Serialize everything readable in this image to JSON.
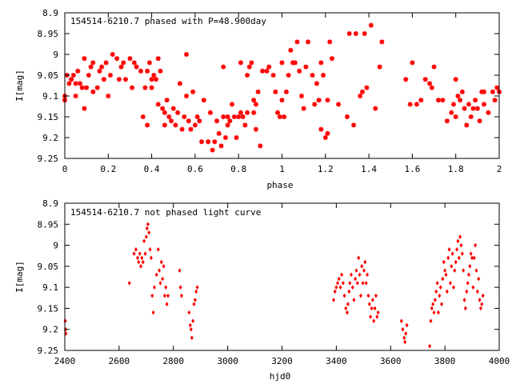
{
  "chart_data": [
    {
      "type": "scatter",
      "title": "154514-6210.7 phased with P=48.900day",
      "xlabel": "phase",
      "ylabel": "I[mag]",
      "xlim": [
        0,
        2
      ],
      "ylim": [
        9.25,
        8.9
      ],
      "y_inverted": true,
      "x_ticks": [
        "0",
        "0.2",
        "0.4",
        "0.6",
        "0.8",
        "1",
        "1.2",
        "1.4",
        "1.6",
        "1.8",
        "2"
      ],
      "x_tick_values": [
        0,
        0.2,
        0.4,
        0.6,
        0.8,
        1.0,
        1.2,
        1.4,
        1.6,
        1.8,
        2.0
      ],
      "y_ticks": [
        "8.9",
        "8.95",
        "9",
        "9.05",
        "9.1",
        "9.15",
        "9.2",
        "9.25"
      ],
      "y_tick_values": [
        8.9,
        8.95,
        9.0,
        9.05,
        9.1,
        9.15,
        9.2,
        9.25
      ],
      "marker": "star",
      "color": "#ff0000",
      "grid": false,
      "points": [
        [
          0.0,
          9.1
        ],
        [
          0.0,
          9.11
        ],
        [
          0.01,
          9.05
        ],
        [
          0.02,
          9.07
        ],
        [
          0.03,
          9.06
        ],
        [
          0.04,
          9.05
        ],
        [
          0.05,
          9.07
        ],
        [
          0.05,
          9.1
        ],
        [
          0.06,
          9.04
        ],
        [
          0.07,
          9.07
        ],
        [
          0.08,
          9.08
        ],
        [
          0.09,
          9.13
        ],
        [
          0.09,
          9.01
        ],
        [
          0.1,
          9.08
        ],
        [
          0.11,
          9.05
        ],
        [
          0.12,
          9.03
        ],
        [
          0.13,
          9.02
        ],
        [
          0.13,
          9.09
        ],
        [
          0.15,
          9.08
        ],
        [
          0.16,
          9.04
        ],
        [
          0.17,
          9.03
        ],
        [
          0.18,
          9.06
        ],
        [
          0.19,
          9.02
        ],
        [
          0.2,
          9.1
        ],
        [
          0.21,
          9.05
        ],
        [
          0.22,
          9.0
        ],
        [
          0.24,
          9.01
        ],
        [
          0.25,
          9.06
        ],
        [
          0.26,
          9.03
        ],
        [
          0.27,
          9.02
        ],
        [
          0.28,
          9.06
        ],
        [
          0.3,
          9.01
        ],
        [
          0.31,
          9.08
        ],
        [
          0.32,
          9.02
        ],
        [
          0.33,
          9.03
        ],
        [
          0.35,
          9.04
        ],
        [
          0.36,
          9.15
        ],
        [
          0.37,
          9.08
        ],
        [
          0.38,
          9.04
        ],
        [
          0.38,
          9.17
        ],
        [
          0.39,
          9.02
        ],
        [
          0.4,
          9.06
        ],
        [
          0.4,
          9.08
        ],
        [
          0.41,
          9.05
        ],
        [
          0.42,
          9.06
        ],
        [
          0.43,
          9.12
        ],
        [
          0.43,
          9.01
        ],
        [
          0.44,
          9.04
        ],
        [
          0.45,
          9.13
        ],
        [
          0.46,
          9.14
        ],
        [
          0.46,
          9.17
        ],
        [
          0.47,
          9.11
        ],
        [
          0.48,
          9.15
        ],
        [
          0.49,
          9.16
        ],
        [
          0.5,
          9.13
        ],
        [
          0.51,
          9.17
        ],
        [
          0.52,
          9.14
        ],
        [
          0.53,
          9.07
        ],
        [
          0.54,
          9.18
        ],
        [
          0.55,
          9.15
        ],
        [
          0.56,
          9.1
        ],
        [
          0.56,
          9.0
        ],
        [
          0.57,
          9.16
        ],
        [
          0.58,
          9.18
        ],
        [
          0.59,
          9.09
        ],
        [
          0.6,
          9.17
        ],
        [
          0.61,
          9.15
        ],
        [
          0.62,
          9.16
        ],
        [
          0.63,
          9.21
        ],
        [
          0.64,
          9.11
        ],
        [
          0.66,
          9.21
        ],
        [
          0.67,
          9.14
        ],
        [
          0.68,
          9.23
        ],
        [
          0.69,
          9.21
        ],
        [
          0.7,
          9.16
        ],
        [
          0.71,
          9.19
        ],
        [
          0.72,
          9.22
        ],
        [
          0.73,
          9.03
        ],
        [
          0.73,
          9.15
        ],
        [
          0.74,
          9.2
        ],
        [
          0.75,
          9.17
        ],
        [
          0.75,
          9.15
        ],
        [
          0.76,
          9.16
        ],
        [
          0.77,
          9.12
        ],
        [
          0.78,
          9.15
        ],
        [
          0.79,
          9.2
        ],
        [
          0.8,
          9.15
        ],
        [
          0.81,
          9.14
        ],
        [
          0.81,
          9.02
        ],
        [
          0.82,
          9.15
        ],
        [
          0.83,
          9.17
        ],
        [
          0.84,
          9.14
        ],
        [
          0.84,
          9.05
        ],
        [
          0.85,
          9.03
        ],
        [
          0.86,
          9.02
        ],
        [
          0.87,
          9.14
        ],
        [
          0.87,
          9.11
        ],
        [
          0.88,
          9.12
        ],
        [
          0.88,
          9.18
        ],
        [
          0.89,
          9.09
        ],
        [
          0.9,
          9.22
        ],
        [
          0.91,
          9.04
        ],
        [
          0.93,
          9.04
        ],
        [
          0.94,
          9.03
        ],
        [
          0.96,
          9.05
        ],
        [
          0.97,
          9.09
        ],
        [
          0.98,
          9.14
        ],
        [
          0.99,
          9.15
        ],
        [
          1.0,
          9.02
        ],
        [
          1.0,
          9.11
        ],
        [
          1.01,
          9.15
        ],
        [
          1.02,
          9.09
        ],
        [
          1.03,
          9.05
        ],
        [
          1.04,
          8.99
        ],
        [
          1.05,
          9.02
        ],
        [
          1.06,
          9.02
        ],
        [
          1.07,
          8.97
        ],
        [
          1.08,
          9.04
        ],
        [
          1.09,
          9.1
        ],
        [
          1.1,
          9.13
        ],
        [
          1.11,
          9.03
        ],
        [
          1.12,
          8.97
        ],
        [
          1.14,
          9.05
        ],
        [
          1.15,
          9.12
        ],
        [
          1.16,
          9.07
        ],
        [
          1.17,
          9.11
        ],
        [
          1.18,
          9.02
        ],
        [
          1.18,
          9.18
        ],
        [
          1.19,
          9.05
        ],
        [
          1.2,
          9.2
        ],
        [
          1.21,
          9.19
        ],
        [
          1.21,
          9.11
        ],
        [
          1.22,
          8.97
        ],
        [
          1.23,
          9.01
        ],
        [
          1.26,
          9.12
        ],
        [
          1.3,
          9.15
        ],
        [
          1.31,
          8.95
        ],
        [
          1.33,
          9.17
        ],
        [
          1.34,
          8.95
        ],
        [
          1.36,
          9.1
        ],
        [
          1.37,
          9.09
        ],
        [
          1.38,
          8.95
        ],
        [
          1.39,
          9.08
        ],
        [
          1.41,
          8.93
        ],
        [
          1.43,
          9.13
        ],
        [
          1.45,
          9.03
        ],
        [
          1.46,
          8.97
        ],
        [
          1.57,
          9.06
        ],
        [
          1.59,
          9.12
        ],
        [
          1.6,
          9.02
        ],
        [
          1.62,
          9.12
        ],
        [
          1.64,
          9.11
        ],
        [
          1.66,
          9.06
        ],
        [
          1.68,
          9.07
        ],
        [
          1.69,
          9.08
        ],
        [
          1.7,
          9.03
        ],
        [
          1.72,
          9.11
        ],
        [
          1.74,
          9.11
        ],
        [
          1.76,
          9.16
        ],
        [
          1.78,
          9.14
        ],
        [
          1.79,
          9.12
        ],
        [
          1.8,
          9.06
        ],
        [
          1.8,
          9.15
        ],
        [
          1.81,
          9.1
        ],
        [
          1.82,
          9.11
        ],
        [
          1.83,
          9.09
        ],
        [
          1.84,
          9.13
        ],
        [
          1.85,
          9.17
        ],
        [
          1.86,
          9.12
        ],
        [
          1.87,
          9.15
        ],
        [
          1.88,
          9.13
        ],
        [
          1.89,
          9.11
        ],
        [
          1.9,
          9.13
        ],
        [
          1.91,
          9.16
        ],
        [
          1.92,
          9.09
        ],
        [
          1.93,
          9.12
        ],
        [
          1.93,
          9.09
        ],
        [
          1.95,
          9.14
        ],
        [
          1.97,
          9.09
        ],
        [
          1.98,
          9.11
        ],
        [
          1.99,
          9.08
        ],
        [
          2.0,
          9.09
        ]
      ]
    },
    {
      "type": "scatter",
      "title": "154514-6210.7 not phased light curve",
      "xlabel": "hjd0",
      "ylabel": "I[mag]",
      "xlim": [
        2400,
        4000
      ],
      "ylim": [
        9.25,
        8.9
      ],
      "y_inverted": true,
      "x_ticks": [
        "2400",
        "2600",
        "2800",
        "3000",
        "3200",
        "3400",
        "3600",
        "3800",
        "4000"
      ],
      "x_tick_values": [
        2400,
        2600,
        2800,
        3000,
        3200,
        3400,
        3600,
        3800,
        4000
      ],
      "y_ticks": [
        "8.9",
        "8.95",
        "9",
        "9.05",
        "9.1",
        "9.15",
        "9.2",
        "9.25"
      ],
      "y_tick_values": [
        8.9,
        8.95,
        9.0,
        9.05,
        9.1,
        9.15,
        9.2,
        9.25
      ],
      "marker": "diamond",
      "color": "#ff0000",
      "grid": false,
      "points": [
        [
          2402,
          9.18
        ],
        [
          2403,
          9.2
        ],
        [
          2404,
          9.21
        ],
        [
          2638,
          9.09
        ],
        [
          2655,
          9.02
        ],
        [
          2662,
          9.01
        ],
        [
          2668,
          9.03
        ],
        [
          2672,
          9.04
        ],
        [
          2676,
          9.02
        ],
        [
          2680,
          9.05
        ],
        [
          2684,
          9.03
        ],
        [
          2688,
          9.04
        ],
        [
          2692,
          8.99
        ],
        [
          2696,
          9.02
        ],
        [
          2700,
          8.98
        ],
        [
          2703,
          8.96
        ],
        [
          2706,
          8.95
        ],
        [
          2710,
          8.97
        ],
        [
          2714,
          9.01
        ],
        [
          2718,
          9.03
        ],
        [
          2722,
          9.12
        ],
        [
          2726,
          9.16
        ],
        [
          2730,
          9.1
        ],
        [
          2738,
          9.07
        ],
        [
          2744,
          9.01
        ],
        [
          2748,
          9.06
        ],
        [
          2752,
          9.09
        ],
        [
          2756,
          9.04
        ],
        [
          2760,
          9.08
        ],
        [
          2764,
          9.05
        ],
        [
          2768,
          9.12
        ],
        [
          2772,
          9.1
        ],
        [
          2776,
          9.14
        ],
        [
          2780,
          9.12
        ],
        [
          2823,
          9.06
        ],
        [
          2826,
          9.1
        ],
        [
          2830,
          9.12
        ],
        [
          2858,
          9.16
        ],
        [
          2862,
          9.19
        ],
        [
          2865,
          9.2
        ],
        [
          2868,
          9.22
        ],
        [
          2872,
          9.18
        ],
        [
          2876,
          9.14
        ],
        [
          2880,
          9.13
        ],
        [
          2884,
          9.11
        ],
        [
          2888,
          9.1
        ],
        [
          3390,
          9.13
        ],
        [
          3395,
          9.11
        ],
        [
          3400,
          9.1
        ],
        [
          3405,
          9.09
        ],
        [
          3410,
          9.08
        ],
        [
          3415,
          9.1
        ],
        [
          3420,
          9.07
        ],
        [
          3425,
          9.09
        ],
        [
          3430,
          9.12
        ],
        [
          3435,
          9.15
        ],
        [
          3440,
          9.16
        ],
        [
          3443,
          9.14
        ],
        [
          3447,
          9.11
        ],
        [
          3450,
          9.09
        ],
        [
          3455,
          9.07
        ],
        [
          3460,
          9.1
        ],
        [
          3465,
          9.13
        ],
        [
          3470,
          9.08
        ],
        [
          3474,
          9.06
        ],
        [
          3478,
          9.09
        ],
        [
          3482,
          9.03
        ],
        [
          3486,
          9.07
        ],
        [
          3490,
          9.12
        ],
        [
          3494,
          9.05
        ],
        [
          3498,
          9.09
        ],
        [
          3502,
          9.06
        ],
        [
          3506,
          9.04
        ],
        [
          3510,
          9.09
        ],
        [
          3514,
          9.07
        ],
        [
          3518,
          9.12
        ],
        [
          3522,
          9.14
        ],
        [
          3526,
          9.17
        ],
        [
          3530,
          9.15
        ],
        [
          3534,
          9.13
        ],
        [
          3538,
          9.18
        ],
        [
          3542,
          9.15
        ],
        [
          3546,
          9.12
        ],
        [
          3550,
          9.17
        ],
        [
          3554,
          9.16
        ],
        [
          3640,
          9.18
        ],
        [
          3645,
          9.2
        ],
        [
          3650,
          9.22
        ],
        [
          3653,
          9.23
        ],
        [
          3656,
          9.21
        ],
        [
          3660,
          9.19
        ],
        [
          3744,
          9.24
        ],
        [
          3748,
          9.18
        ],
        [
          3752,
          9.15
        ],
        [
          3756,
          9.14
        ],
        [
          3760,
          9.16
        ],
        [
          3764,
          9.13
        ],
        [
          3768,
          9.11
        ],
        [
          3772,
          9.09
        ],
        [
          3776,
          9.16
        ],
        [
          3780,
          9.12
        ],
        [
          3784,
          9.1
        ],
        [
          3788,
          9.14
        ],
        [
          3792,
          9.08
        ],
        [
          3796,
          9.04
        ],
        [
          3800,
          9.06
        ],
        [
          3804,
          9.07
        ],
        [
          3808,
          9.11
        ],
        [
          3812,
          9.03
        ],
        [
          3816,
          9.01
        ],
        [
          3820,
          9.09
        ],
        [
          3824,
          9.05
        ],
        [
          3828,
          9.02
        ],
        [
          3832,
          9.1
        ],
        [
          3836,
          9.06
        ],
        [
          3840,
          9.04
        ],
        [
          3844,
          9.01
        ],
        [
          3848,
          8.99
        ],
        [
          3852,
          9.03
        ],
        [
          3856,
          8.98
        ],
        [
          3860,
          9.0
        ],
        [
          3864,
          9.02
        ],
        [
          3868,
          9.06
        ],
        [
          3872,
          9.13
        ],
        [
          3876,
          9.15
        ],
        [
          3880,
          9.11
        ],
        [
          3884,
          9.09
        ],
        [
          3888,
          9.07
        ],
        [
          3892,
          9.05
        ],
        [
          3896,
          9.02
        ],
        [
          3900,
          9.03
        ],
        [
          3904,
          9.1
        ],
        [
          3908,
          9.03
        ],
        [
          3912,
          9.0
        ],
        [
          3916,
          9.06
        ],
        [
          3920,
          9.11
        ],
        [
          3924,
          9.08
        ],
        [
          3928,
          9.13
        ],
        [
          3932,
          9.15
        ],
        [
          3936,
          9.14
        ],
        [
          3940,
          9.12
        ]
      ]
    }
  ]
}
